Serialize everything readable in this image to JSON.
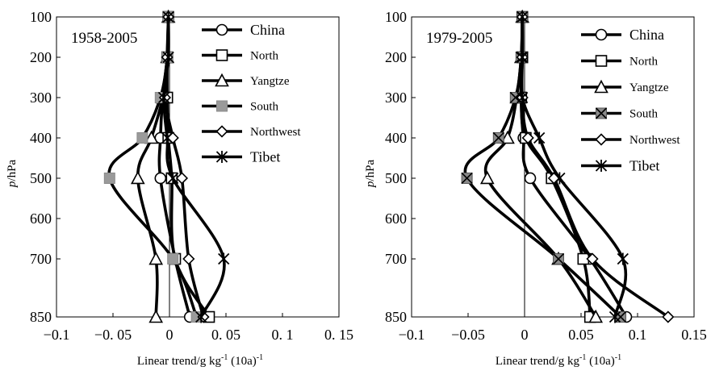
{
  "chart_data": [
    {
      "type": "line",
      "period_label": "1958-2005",
      "xlabel_main": "Linear trend/g kg",
      "xlabel_sup1": "-1",
      "xlabel_mid": " (10a)",
      "xlabel_sup2": "-1",
      "ylabel_italic": "p",
      "ylabel_rest": "/hPa",
      "xlim": [
        -0.1,
        0.15
      ],
      "x_ticks": [
        -0.1,
        -0.05,
        0,
        0.05,
        0.1,
        0.15
      ],
      "x_tick_labels": [
        "−0.1",
        "−0. 05",
        "0",
        "0. 05",
        "0. 1",
        "0. 15"
      ],
      "ylim": [
        100,
        850
      ],
      "y_ticks": [
        100,
        200,
        300,
        400,
        500,
        600,
        700,
        850
      ],
      "y_tick_labels": [
        "100",
        "200",
        "300",
        "400",
        "500",
        "600",
        "700",
        "850"
      ],
      "pressure_levels": [
        100,
        200,
        300,
        400,
        500,
        700,
        850
      ],
      "legend_position": "top-right",
      "series": [
        {
          "name": "China",
          "marker": "circle",
          "values": [
            -0.001,
            -0.002,
            -0.006,
            -0.008,
            -0.008,
            0.005,
            0.018
          ]
        },
        {
          "name": "North",
          "marker": "square",
          "values": [
            -0.001,
            -0.002,
            -0.002,
            -0.001,
            0.002,
            0.005,
            0.035
          ]
        },
        {
          "name": "Yangtze",
          "marker": "triangle",
          "values": [
            -0.001,
            -0.002,
            -0.006,
            -0.016,
            -0.028,
            -0.012,
            -0.012
          ]
        },
        {
          "name": "South",
          "marker": "filled-square",
          "values": [
            -0.001,
            -0.002,
            -0.008,
            -0.024,
            -0.053,
            0.003,
            0.024
          ]
        },
        {
          "name": "Northwest",
          "marker": "diamond",
          "values": [
            -0.001,
            -0.002,
            -0.004,
            0.003,
            0.011,
            0.017,
            0.03
          ]
        },
        {
          "name": "Tibet",
          "marker": "asterisk",
          "values": [
            -0.001,
            -0.001,
            -0.005,
            -0.002,
            0.003,
            0.048,
            0.028
          ]
        }
      ]
    },
    {
      "type": "line",
      "period_label": "1979-2005",
      "xlabel_main": "Linear trend/g kg",
      "xlabel_sup1": "-1",
      "xlabel_mid": " (10a)",
      "xlabel_sup2": "-1",
      "ylabel_italic": "p",
      "ylabel_rest": "/hPa",
      "xlim": [
        -0.1,
        0.15
      ],
      "x_ticks": [
        -0.1,
        -0.05,
        0,
        0.05,
        0.1,
        0.15
      ],
      "x_tick_labels": [
        "−0.1",
        "−0.05",
        "0",
        "0.05",
        "0.1",
        "0.15"
      ],
      "ylim": [
        100,
        850
      ],
      "y_ticks": [
        100,
        200,
        300,
        400,
        500,
        600,
        700,
        850
      ],
      "y_tick_labels": [
        "100",
        "200",
        "300",
        "400",
        "500",
        "600",
        "700",
        "850"
      ],
      "pressure_levels": [
        100,
        200,
        300,
        400,
        500,
        700,
        850
      ],
      "legend_position": "top-right",
      "series": [
        {
          "name": "China",
          "marker": "circle",
          "values": [
            -0.002,
            -0.002,
            -0.003,
            -0.001,
            0.005,
            0.058,
            0.09
          ]
        },
        {
          "name": "North",
          "marker": "square",
          "values": [
            -0.002,
            -0.002,
            -0.003,
            0.001,
            0.024,
            0.052,
            0.058
          ]
        },
        {
          "name": "Yangtze",
          "marker": "triangle",
          "values": [
            -0.002,
            -0.003,
            -0.007,
            -0.015,
            -0.033,
            0.03,
            0.063
          ]
        },
        {
          "name": "South",
          "marker": "x-square",
          "values": [
            -0.002,
            -0.003,
            -0.008,
            -0.023,
            -0.051,
            0.03,
            0.085
          ]
        },
        {
          "name": "Northwest",
          "marker": "diamond",
          "values": [
            -0.002,
            -0.002,
            -0.002,
            0.003,
            0.026,
            0.06,
            0.127
          ]
        },
        {
          "name": "Tibet",
          "marker": "asterisk",
          "values": [
            -0.002,
            -0.002,
            -0.002,
            0.013,
            0.031,
            0.087,
            0.08
          ]
        }
      ]
    }
  ]
}
